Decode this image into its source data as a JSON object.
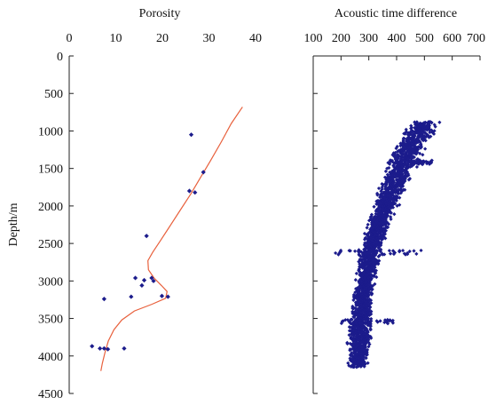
{
  "chart_data": [
    {
      "type": "scatter",
      "title": "Porosity",
      "ylabel": "Depth/m",
      "xlim": [
        0,
        40
      ],
      "x_ticks": [
        "0",
        "10",
        "20",
        "30",
        "40"
      ],
      "ylim": [
        0,
        4500
      ],
      "y_inverted": true,
      "y_ticks": [
        "0",
        "500",
        "1000",
        "1500",
        "2000",
        "2500",
        "3000",
        "3500",
        "4000",
        "4500"
      ],
      "series": [
        {
          "kind": "line",
          "color": "#e8603c",
          "points": [
            [
              37.2,
              680
            ],
            [
              34.8,
              900
            ],
            [
              32.6,
              1150
            ],
            [
              30.3,
              1400
            ],
            [
              28.2,
              1620
            ],
            [
              26.1,
              1840
            ],
            [
              23.8,
              2060
            ],
            [
              21.5,
              2280
            ],
            [
              19.5,
              2470
            ],
            [
              17.9,
              2620
            ],
            [
              16.9,
              2730
            ],
            [
              17.0,
              2850
            ],
            [
              18.2,
              2960
            ],
            [
              19.8,
              3060
            ],
            [
              21.0,
              3140
            ],
            [
              20.7,
              3230
            ],
            [
              17.8,
              3310
            ],
            [
              14.0,
              3400
            ],
            [
              11.3,
              3520
            ],
            [
              9.6,
              3650
            ],
            [
              8.4,
              3800
            ],
            [
              7.7,
              3950
            ],
            [
              7.1,
              4100
            ],
            [
              6.8,
              4200
            ]
          ]
        },
        {
          "kind": "scatter",
          "color": "#1c1c8c",
          "points": [
            [
              26.2,
              1050
            ],
            [
              28.8,
              1550
            ],
            [
              25.8,
              1800
            ],
            [
              27.0,
              1820
            ],
            [
              16.6,
              2400
            ],
            [
              14.2,
              2960
            ],
            [
              16.1,
              2990
            ],
            [
              17.7,
              2960
            ],
            [
              18.1,
              3000
            ],
            [
              15.6,
              3060
            ],
            [
              13.3,
              3210
            ],
            [
              19.9,
              3200
            ],
            [
              21.2,
              3210
            ],
            [
              7.5,
              3240
            ],
            [
              4.9,
              3870
            ],
            [
              7.5,
              3900
            ],
            [
              6.6,
              3900
            ],
            [
              8.3,
              3910
            ],
            [
              11.8,
              3900
            ]
          ]
        }
      ]
    },
    {
      "type": "scatter",
      "title": "Acoustic time difference",
      "xlim": [
        100,
        700
      ],
      "x_ticks": [
        "100",
        "200",
        "300",
        "400",
        "500",
        "600",
        "700"
      ],
      "ylim": [
        0,
        4500
      ],
      "y_inverted": true,
      "series": [
        {
          "kind": "scatter",
          "color": "#1c1c8c",
          "band": [
            {
              "depth": 880,
              "min": 440,
              "max": 560
            },
            {
              "depth": 1000,
              "min": 410,
              "max": 560
            },
            {
              "depth": 1200,
              "min": 380,
              "max": 520
            },
            {
              "depth": 1500,
              "min": 350,
              "max": 480
            },
            {
              "depth": 1800,
              "min": 320,
              "max": 440
            },
            {
              "depth": 2100,
              "min": 295,
              "max": 400
            },
            {
              "depth": 2500,
              "min": 265,
              "max": 360
            },
            {
              "depth": 3000,
              "min": 245,
              "max": 330
            },
            {
              "depth": 3500,
              "min": 225,
              "max": 320
            },
            {
              "depth": 3800,
              "min": 215,
              "max": 320
            },
            {
              "depth": 4150,
              "min": 220,
              "max": 300
            }
          ],
          "clusters": [
            {
              "depth": 2620,
              "min": 180,
              "max": 490
            },
            {
              "depth": 3540,
              "min": 175,
              "max": 390
            },
            {
              "depth": 1420,
              "min": 460,
              "max": 530
            }
          ]
        }
      ]
    }
  ]
}
